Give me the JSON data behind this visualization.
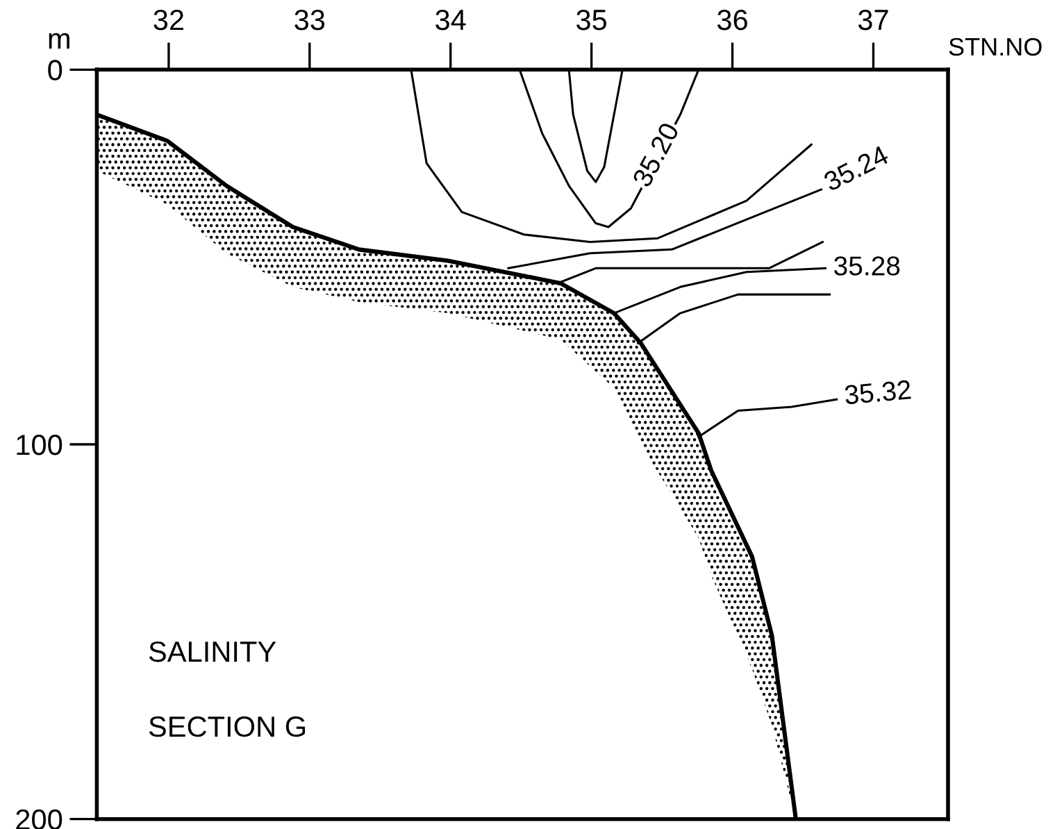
{
  "chart_data": {
    "type": "line",
    "xlabel": "STN.NO",
    "ylabel": "m",
    "xlim": [
      31.49,
      37.53
    ],
    "xticks": [
      32,
      33,
      34,
      35,
      36,
      37
    ],
    "ylim": [
      200,
      0
    ],
    "yticks": [
      0,
      100,
      200
    ],
    "grid": false,
    "marker": "none",
    "line_style": "solid",
    "series": [
      {
        "color": "#000000",
        "x": [
          31.49,
          31.99,
          32.41,
          32.88,
          33.35,
          33.98,
          34.78,
          35.16,
          35.35,
          35.76,
          35.85,
          36.14,
          36.28,
          36.45
        ],
        "values": [
          12,
          19,
          31,
          42,
          48,
          51,
          57,
          65,
          73,
          97,
          107,
          130,
          151,
          200
        ],
        "lower": [
          12,
          19,
          31,
          42,
          48,
          51,
          57,
          65,
          73,
          97,
          107,
          130,
          151,
          200
        ],
        "upper": [
          27,
          36,
          49,
          58,
          62,
          65,
          72,
          85,
          100,
          125,
          135,
          160,
          175,
          200
        ]
      },
      {
        "color": "#000000",
        "x": [
          34.84,
          34.87,
          34.97,
          35.03,
          35.09,
          35.22
        ],
        "values": [
          0,
          12,
          27,
          30,
          26,
          0
        ]
      },
      {
        "color": "#000000",
        "x": [
          34.49,
          34.65,
          34.84,
          35.03,
          35.12,
          35.28,
          35.63,
          35.76
        ],
        "values": [
          0,
          17,
          31,
          41,
          42,
          37,
          12,
          0
        ]
      },
      {
        "color": "#000000",
        "x": [
          33.72,
          33.83,
          34.08,
          34.52,
          34.99,
          35.47,
          36.1,
          36.56
        ],
        "values": [
          0,
          25,
          38,
          44,
          46,
          45,
          35,
          20
        ]
      },
      {
        "color": "#000000",
        "x": [
          34.41,
          34.99,
          35.57,
          36.1,
          36.63
        ],
        "values": [
          53,
          49,
          48,
          40,
          32
        ]
      },
      {
        "color": "#000000",
        "x": [
          34.76,
          35.03,
          35.79,
          36.26,
          36.64
        ],
        "values": [
          57,
          53,
          53,
          53,
          46
        ]
      },
      {
        "color": "#000000",
        "x": [
          35.16,
          35.63,
          36.1,
          36.66
        ],
        "values": [
          65,
          58,
          54,
          53
        ]
      },
      {
        "color": "#000000",
        "x": [
          35.33,
          35.63,
          36.04,
          36.69
        ],
        "values": [
          73,
          65,
          60,
          60
        ]
      },
      {
        "color": "#000000",
        "x": [
          35.76,
          36.04,
          36.42,
          36.74
        ],
        "values": [
          98,
          91,
          90,
          88
        ]
      }
    ],
    "annotations": [
      {
        "text": "35.20",
        "x": 35.47,
        "y": 23
      },
      {
        "text": "35.24",
        "x": 36.63,
        "y": 32
      },
      {
        "text": "35.28",
        "x": 36.66,
        "y": 53
      },
      {
        "text": "35.32",
        "x": 36.74,
        "y": 88
      },
      "SALINITY",
      "SECTION G"
    ]
  }
}
